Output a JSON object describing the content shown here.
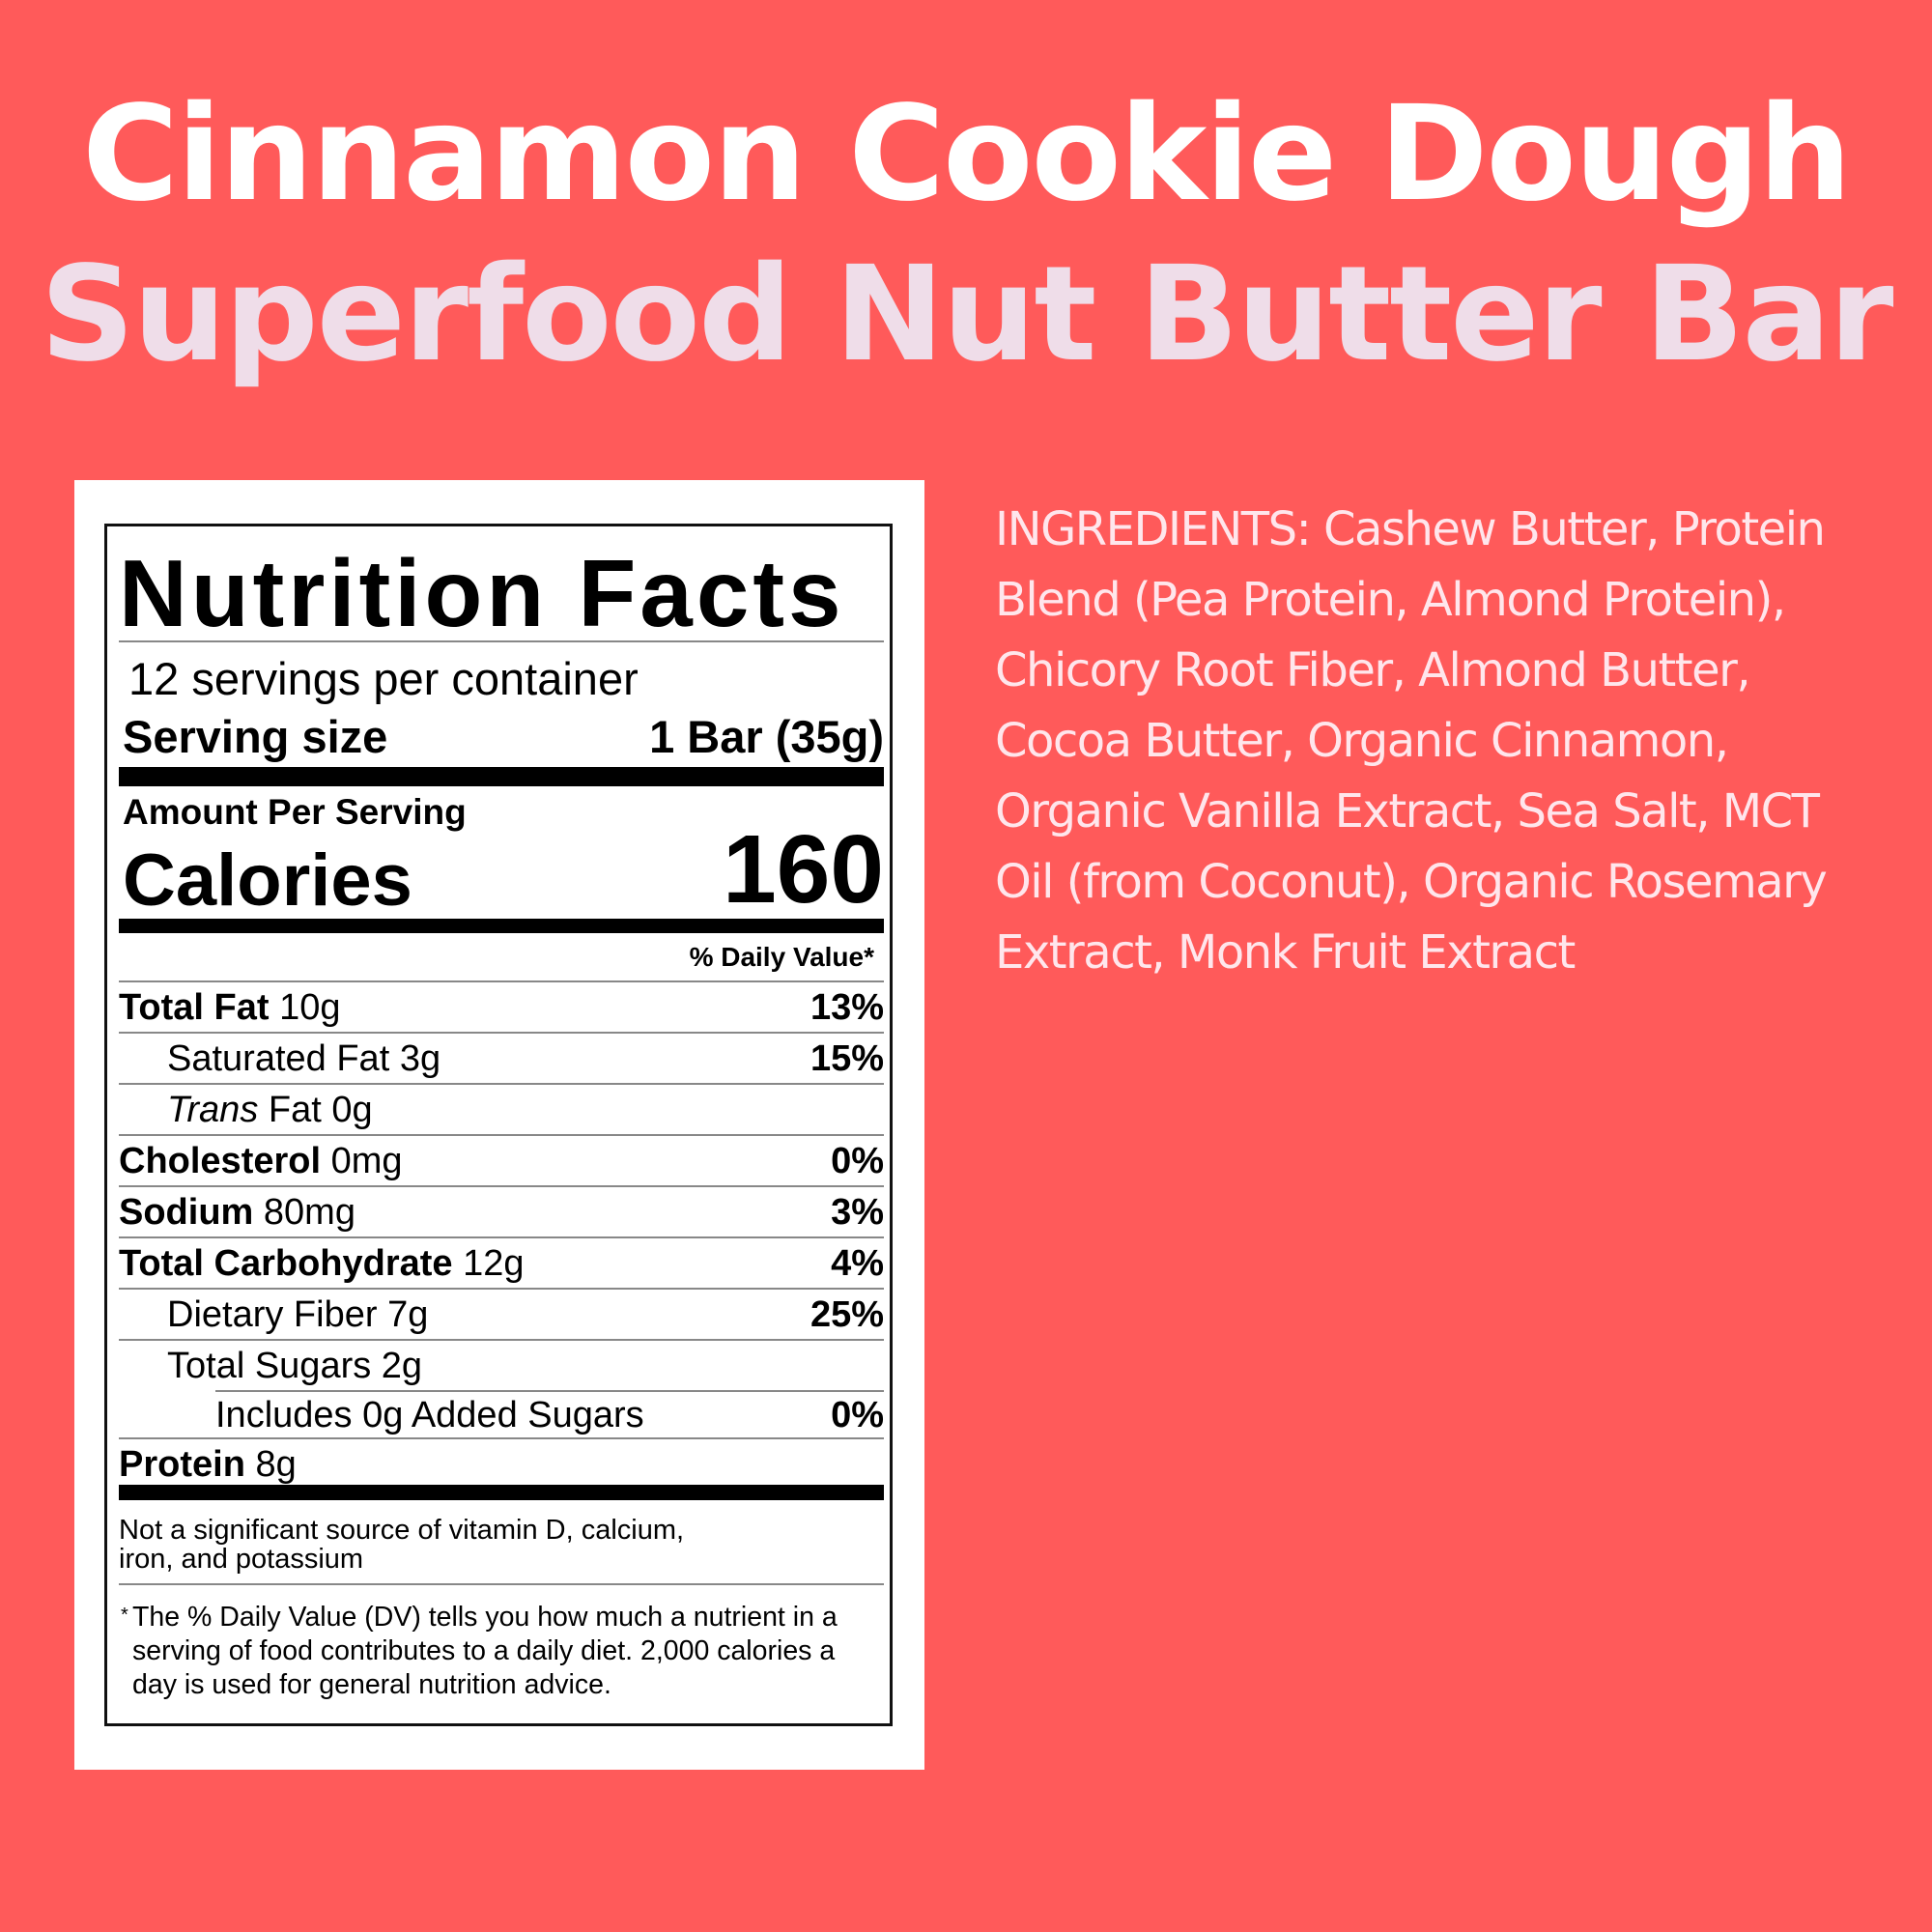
{
  "header": {
    "line1": "Cinnamon Cookie Dough",
    "line2": "Superfood Nut Butter Bar",
    "line1_color": "#FFFFFF",
    "line2_color": "#EFDDE9",
    "background": "#FF5A5A"
  },
  "label": {
    "title": "Nutrition Facts",
    "servings": "12 servings per container",
    "serving_size_label": "Serving size",
    "serving_size_value": "1 Bar (35g)",
    "amount_per_serving": "Amount Per Serving",
    "calories_label": "Calories",
    "calories_value": "160",
    "dv_header": "% Daily Value*",
    "rows": [
      {
        "name": "Total Fat",
        "amount": "10g",
        "dv": "13%"
      },
      {
        "name": "Saturated Fat",
        "amount": "3g",
        "dv": "15%"
      },
      {
        "name": "Trans",
        "name2": "Fat",
        "amount": "0g",
        "dv": ""
      },
      {
        "name": "Cholesterol",
        "amount": "0mg",
        "dv": "0%"
      },
      {
        "name": "Sodium",
        "amount": "80mg",
        "dv": "3%"
      },
      {
        "name": "Total Carbohydrate",
        "amount": "12g",
        "dv": "4%"
      },
      {
        "name": "Dietary Fiber",
        "amount": "7g",
        "dv": "25%"
      },
      {
        "name": "Total Sugars",
        "amount": "2g",
        "dv": ""
      },
      {
        "text": "Includes 0g Added Sugars",
        "dv": "0%"
      },
      {
        "name": "Protein",
        "amount": "8g",
        "dv": ""
      }
    ],
    "not_significant": "Not a significant source of vitamin D, calcium, iron, and potassium",
    "footnote_star": "*",
    "footnote": "The % Daily Value (DV) tells you how much a nutrient in a serving of food contributes to a daily diet. 2,000 calories a day is used for general nutrition advice."
  },
  "ingredients": "INGREDIENTS: Cashew Butter, Protein Blend (Pea Protein, Almond Protein), Chicory Root Fiber, Almond Butter, Cocoa Butter, Organic Cinnamon, Organic Vanilla Extract, Sea Salt, MCT Oil (from Coconut), Organic Rosemary Extract, Monk Fruit Extract"
}
